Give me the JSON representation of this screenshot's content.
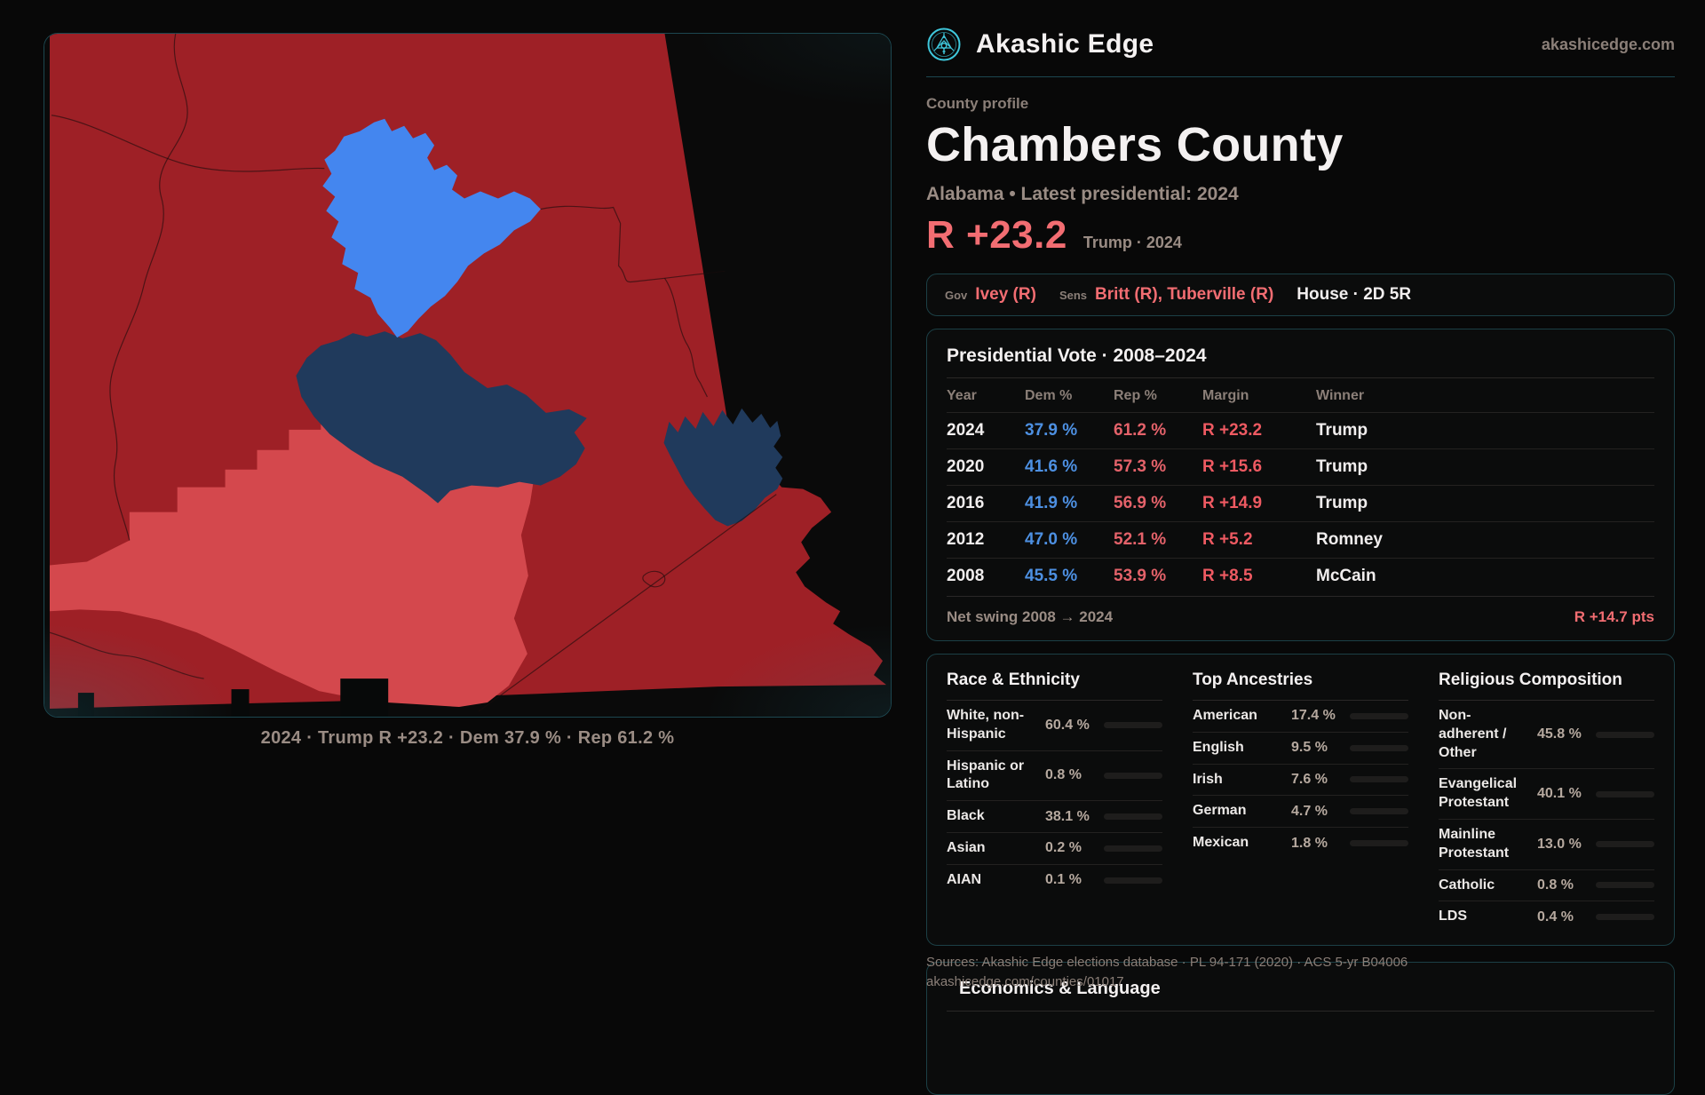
{
  "brand": {
    "name": "Akashic Edge",
    "domain": "akashicedge.com"
  },
  "header": {
    "eyebrow": "County profile",
    "title": "Chambers County",
    "subtitle": "Alabama • Latest presidential: 2024",
    "margin_value": "R +23.2",
    "margin_context": "Trump · 2024"
  },
  "officials": {
    "gov_label": "Gov",
    "gov_value": "Ivey (R)",
    "sens_label": "Sens",
    "sens_value": "Britt (R), Tuberville (R)",
    "house_value": "House · 2D 5R"
  },
  "presidential": {
    "title": "Presidential Vote · 2008–2024",
    "columns": {
      "year": "Year",
      "dem": "Dem %",
      "rep": "Rep %",
      "margin": "Margin",
      "winner": "Winner"
    },
    "rows": [
      {
        "year": "2024",
        "dem": "37.9 %",
        "rep": "61.2 %",
        "margin": "R +23.2",
        "winner": "Trump"
      },
      {
        "year": "2020",
        "dem": "41.6 %",
        "rep": "57.3 %",
        "margin": "R +15.6",
        "winner": "Trump"
      },
      {
        "year": "2016",
        "dem": "41.9 %",
        "rep": "56.9 %",
        "margin": "R +14.9",
        "winner": "Trump"
      },
      {
        "year": "2012",
        "dem": "47.0 %",
        "rep": "52.1 %",
        "margin": "R +5.2",
        "winner": "Romney"
      },
      {
        "year": "2008",
        "dem": "45.5 %",
        "rep": "53.9 %",
        "margin": "R +8.5",
        "winner": "McCain"
      }
    ],
    "net_swing_label": "Net swing 2008 → 2024",
    "net_swing_value": "R +14.7 pts"
  },
  "demographics": {
    "race": {
      "title": "Race & Ethnicity",
      "rows": [
        {
          "label": "White, non-Hispanic",
          "value": "60.4 %",
          "pct": 60.4,
          "color": "#93aecd"
        },
        {
          "label": "Hispanic or Latino",
          "value": "0.8 %",
          "pct": 0.8,
          "color": "#93aecd"
        },
        {
          "label": "Black",
          "value": "38.1 %",
          "pct": 38.1,
          "color": "#8478e2"
        },
        {
          "label": "Asian",
          "value": "0.2 %",
          "pct": 0.2,
          "color": "#93aecd"
        },
        {
          "label": "AIAN",
          "value": "0.1 %",
          "pct": 0.1,
          "color": "#93aecd"
        }
      ]
    },
    "ancestries": {
      "title": "Top Ancestries",
      "rows": [
        {
          "label": "American",
          "value": "17.4 %",
          "pct": 17.4,
          "color": "#9fb6d1"
        },
        {
          "label": "English",
          "value": "9.5 %",
          "pct": 9.5,
          "color": "#9fb6d1"
        },
        {
          "label": "Irish",
          "value": "7.6 %",
          "pct": 7.6,
          "color": "#9fb6d1"
        },
        {
          "label": "German",
          "value": "4.7 %",
          "pct": 4.7,
          "color": "#9fb6d1"
        },
        {
          "label": "Mexican",
          "value": "1.8 %",
          "pct": 1.8,
          "color": "#e2a23d"
        }
      ]
    },
    "religion": {
      "title": "Religious Composition",
      "rows": [
        {
          "label": "Non-adherent / Other",
          "value": "45.8 %",
          "pct": 45.8,
          "color": "#76849e"
        },
        {
          "label": "Evangelical Protestant",
          "value": "40.1 %",
          "pct": 40.1,
          "color": "#e0696e"
        },
        {
          "label": "Mainline Protestant",
          "value": "13.0 %",
          "pct": 13.0,
          "color": "#4f8fe0"
        },
        {
          "label": "Catholic",
          "value": "0.8 %",
          "pct": 0.8,
          "color": "#d8b03c"
        },
        {
          "label": "LDS",
          "value": "0.4 %",
          "pct": 0.4,
          "color": "#9fb6d1"
        }
      ]
    }
  },
  "sources": {
    "line1": "Sources: Akashic Edge elections database · PL 94-171 (2020) · ACS 5-yr B04006",
    "line2": "akashicedge.com/counties/01017"
  },
  "economics": {
    "title": "Economics & Language"
  },
  "map": {
    "caption": "2024 · Trump R +23.2 · Dem 37.9 % · Rep 61.2 %",
    "colors": {
      "republican_strong": "#9e2026",
      "republican_light": "#d4484d",
      "democrat_strong": "#203a5c",
      "democrat_bright": "#4486ef",
      "panel_border_teal": "#1c4750",
      "accent_red": "#f26d72",
      "dem_blue_text": "#4d90e2",
      "rep_red_text": "#e4626a"
    }
  }
}
